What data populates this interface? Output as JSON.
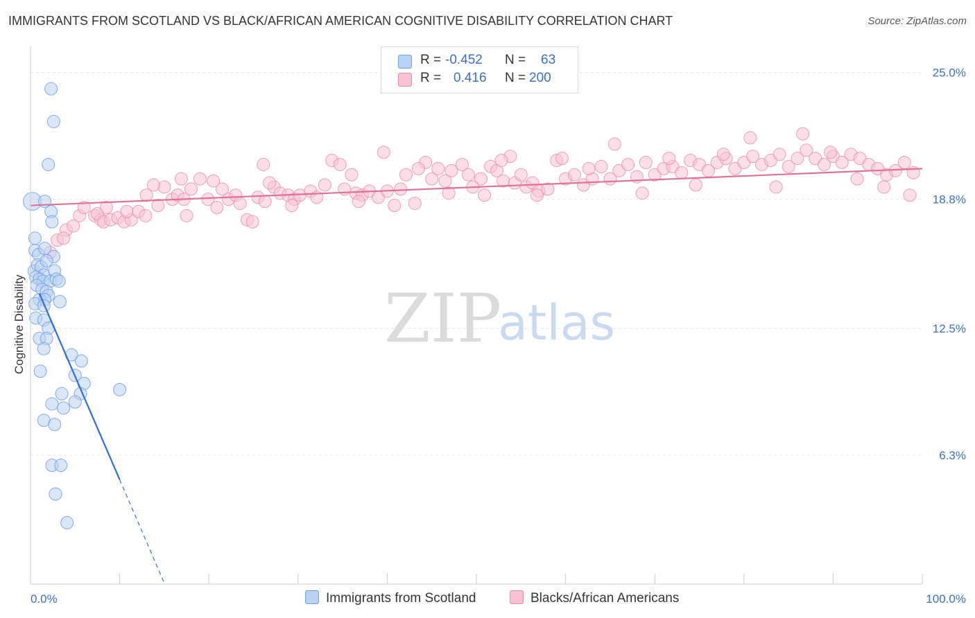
{
  "title": "IMMIGRANTS FROM SCOTLAND VS BLACK/AFRICAN AMERICAN COGNITIVE DISABILITY CORRELATION CHART",
  "source": "Source: ZipAtlas.com",
  "watermark": {
    "zip": "ZIP",
    "atlas": "atlas"
  },
  "colors": {
    "blue": "#6b9fe0",
    "blue_fill": "#b9d1f2",
    "blue_line": "#2f6fd1",
    "pink": "#e88aaa",
    "pink_fill": "#f7c3d4",
    "pink_line": "#e0709a",
    "grid": "#e6e6e6",
    "axis_text": "#3a6fc4"
  },
  "legend": {
    "rows": [
      {
        "r_label": "R =",
        "r_value": "-0.452",
        "n_label": "N =",
        "n_value": "63"
      },
      {
        "r_label": "R =",
        "r_value": "0.416",
        "n_label": "N =",
        "n_value": "200"
      }
    ]
  },
  "chart_data": {
    "type": "scatter",
    "title": "IMMIGRANTS FROM SCOTLAND VS BLACK/AFRICAN AMERICAN COGNITIVE DISABILITY CORRELATION CHART",
    "xlabel": "",
    "ylabel": "Cognitive Disability",
    "xlim": [
      0,
      100
    ],
    "ylim": [
      0,
      26
    ],
    "x_tick_labels": [
      "0.0%",
      "100.0%"
    ],
    "y_ticks": [
      {
        "value": 6.3,
        "label": "6.3%"
      },
      {
        "value": 12.5,
        "label": "12.5%"
      },
      {
        "value": 18.8,
        "label": "18.8%"
      },
      {
        "value": 25.0,
        "label": "25.0%"
      }
    ],
    "grid": true,
    "legend_position": "bottom-center",
    "series": [
      {
        "name": "Immigrants from Scotland",
        "color": "#6b9fe0",
        "trend": {
          "x1": 0,
          "y1": 15.2,
          "x2": 10,
          "y2": 5.1,
          "dash_to_x": 15
        },
        "points": [
          [
            0.2,
            18.7
          ],
          [
            2.3,
            24.2
          ],
          [
            2.6,
            22.6
          ],
          [
            2.0,
            20.5
          ],
          [
            1.6,
            18.7
          ],
          [
            2.3,
            18.2
          ],
          [
            2.4,
            17.7
          ],
          [
            0.5,
            16.9
          ],
          [
            0.5,
            16.3
          ],
          [
            0.9,
            16.1
          ],
          [
            1.6,
            16.4
          ],
          [
            2.6,
            16.0
          ],
          [
            0.4,
            15.3
          ],
          [
            0.8,
            15.6
          ],
          [
            1.2,
            15.5
          ],
          [
            1.5,
            15.1
          ],
          [
            1.8,
            15.8
          ],
          [
            2.7,
            15.3
          ],
          [
            0.6,
            15.0
          ],
          [
            1.0,
            14.9
          ],
          [
            1.4,
            14.8
          ],
          [
            2.2,
            14.8
          ],
          [
            2.9,
            14.9
          ],
          [
            3.2,
            14.8
          ],
          [
            0.7,
            14.6
          ],
          [
            1.3,
            14.4
          ],
          [
            1.8,
            14.3
          ],
          [
            2.0,
            14.1
          ],
          [
            1.0,
            13.9
          ],
          [
            1.6,
            13.9
          ],
          [
            3.3,
            13.8
          ],
          [
            0.5,
            13.7
          ],
          [
            1.5,
            13.6
          ],
          [
            0.6,
            13.0
          ],
          [
            1.5,
            12.9
          ],
          [
            2.0,
            12.5
          ],
          [
            1.0,
            12.0
          ],
          [
            1.8,
            12.0
          ],
          [
            1.5,
            11.5
          ],
          [
            4.6,
            11.2
          ],
          [
            5.7,
            10.9
          ],
          [
            1.1,
            10.4
          ],
          [
            5.0,
            10.2
          ],
          [
            6.0,
            9.8
          ],
          [
            10.0,
            9.5
          ],
          [
            3.5,
            9.3
          ],
          [
            5.6,
            9.3
          ],
          [
            2.4,
            8.8
          ],
          [
            3.7,
            8.6
          ],
          [
            5.0,
            8.9
          ],
          [
            1.5,
            8.0
          ],
          [
            2.7,
            7.8
          ],
          [
            2.4,
            5.8
          ],
          [
            3.4,
            5.8
          ],
          [
            2.8,
            4.4
          ],
          [
            4.1,
            3.0
          ]
        ]
      },
      {
        "name": "Blacks/African Americans",
        "color": "#e88aaa",
        "trend": {
          "x1": 0,
          "y1": 18.5,
          "x2": 100,
          "y2": 20.3
        },
        "points": [
          [
            2.2,
            16.2
          ],
          [
            3.0,
            16.8
          ],
          [
            4.0,
            17.3
          ],
          [
            3.7,
            16.9
          ],
          [
            4.8,
            17.5
          ],
          [
            5.5,
            18.0
          ],
          [
            6.0,
            18.4
          ],
          [
            7.2,
            18.0
          ],
          [
            7.9,
            17.8
          ],
          [
            7.5,
            18.1
          ],
          [
            8.2,
            17.7
          ],
          [
            9.0,
            17.8
          ],
          [
            9.8,
            17.9
          ],
          [
            10.5,
            17.7
          ],
          [
            11.3,
            17.8
          ],
          [
            12.1,
            18.2
          ],
          [
            12.9,
            18.0
          ],
          [
            13.0,
            19.0
          ],
          [
            14.3,
            18.5
          ],
          [
            15.0,
            19.4
          ],
          [
            15.9,
            18.8
          ],
          [
            16.5,
            19.0
          ],
          [
            17.2,
            18.8
          ],
          [
            17.5,
            18.0
          ],
          [
            18.0,
            19.3
          ],
          [
            19.0,
            19.8
          ],
          [
            19.9,
            18.8
          ],
          [
            20.9,
            18.4
          ],
          [
            21.5,
            19.3
          ],
          [
            22.2,
            18.8
          ],
          [
            23.0,
            19.0
          ],
          [
            24.3,
            17.8
          ],
          [
            24.9,
            17.7
          ],
          [
            25.5,
            18.9
          ],
          [
            26.3,
            18.7
          ],
          [
            26.1,
            20.5
          ],
          [
            27.3,
            19.4
          ],
          [
            28.0,
            19.1
          ],
          [
            28.9,
            19.0
          ],
          [
            29.6,
            18.8
          ],
          [
            30.2,
            19.0
          ],
          [
            31.4,
            19.2
          ],
          [
            32.1,
            18.9
          ],
          [
            33.8,
            20.7
          ],
          [
            34.7,
            20.5
          ],
          [
            35.2,
            19.3
          ],
          [
            36.0,
            20.0
          ],
          [
            36.5,
            19.1
          ],
          [
            37.2,
            19.0
          ],
          [
            38.0,
            19.2
          ],
          [
            39.0,
            18.9
          ],
          [
            40.0,
            19.2
          ],
          [
            40.8,
            18.5
          ],
          [
            41.5,
            19.3
          ],
          [
            42.1,
            20.0
          ],
          [
            43.1,
            18.6
          ],
          [
            44.3,
            20.6
          ],
          [
            45.0,
            19.8
          ],
          [
            45.7,
            20.3
          ],
          [
            46.5,
            19.7
          ],
          [
            47.2,
            20.2
          ],
          [
            48.4,
            20.5
          ],
          [
            49.1,
            20.0
          ],
          [
            50.5,
            19.8
          ],
          [
            50.9,
            19.0
          ],
          [
            51.6,
            20.4
          ],
          [
            52.3,
            20.2
          ],
          [
            53.0,
            19.7
          ],
          [
            53.8,
            20.9
          ],
          [
            54.3,
            19.6
          ],
          [
            55.0,
            20.0
          ],
          [
            55.6,
            19.4
          ],
          [
            56.3,
            19.6
          ],
          [
            57.0,
            19.2
          ],
          [
            58.0,
            19.3
          ],
          [
            59.0,
            20.7
          ],
          [
            60.0,
            19.8
          ],
          [
            61.0,
            20.0
          ],
          [
            62.0,
            19.5
          ],
          [
            63.0,
            19.8
          ],
          [
            64.0,
            20.4
          ],
          [
            65.0,
            19.8
          ],
          [
            66.0,
            20.2
          ],
          [
            67.0,
            20.5
          ],
          [
            68.0,
            19.9
          ],
          [
            69.0,
            20.6
          ],
          [
            70.0,
            20.0
          ],
          [
            71.0,
            20.3
          ],
          [
            72.0,
            20.4
          ],
          [
            73.0,
            20.1
          ],
          [
            74.0,
            20.7
          ],
          [
            75.0,
            20.5
          ],
          [
            76.0,
            20.2
          ],
          [
            77.0,
            20.6
          ],
          [
            78.0,
            20.8
          ],
          [
            79.0,
            20.3
          ],
          [
            80.0,
            20.6
          ],
          [
            81.0,
            20.9
          ],
          [
            82.0,
            20.5
          ],
          [
            83.0,
            20.7
          ],
          [
            84.0,
            21.0
          ],
          [
            85.0,
            20.4
          ],
          [
            86.0,
            20.8
          ],
          [
            87.0,
            21.2
          ],
          [
            88.0,
            20.8
          ],
          [
            89.0,
            20.5
          ],
          [
            90.0,
            20.9
          ],
          [
            91.0,
            20.6
          ],
          [
            92.0,
            21.0
          ],
          [
            93.0,
            20.8
          ],
          [
            94.0,
            20.5
          ],
          [
            95.0,
            20.3
          ],
          [
            96.0,
            20.0
          ],
          [
            97.0,
            20.2
          ],
          [
            98.0,
            20.6
          ],
          [
            99.0,
            20.1
          ],
          [
            8.5,
            18.4
          ],
          [
            10.8,
            18.2
          ],
          [
            13.8,
            19.5
          ],
          [
            16.9,
            19.8
          ],
          [
            20.5,
            19.7
          ],
          [
            23.5,
            18.6
          ],
          [
            26.8,
            19.6
          ],
          [
            29.3,
            18.5
          ],
          [
            33.0,
            19.5
          ],
          [
            36.8,
            18.7
          ],
          [
            39.6,
            21.1
          ],
          [
            43.5,
            20.3
          ],
          [
            46.9,
            19.1
          ],
          [
            49.6,
            19.4
          ],
          [
            52.8,
            20.7
          ],
          [
            56.8,
            19.0
          ],
          [
            59.6,
            20.8
          ],
          [
            62.6,
            20.3
          ],
          [
            65.5,
            21.5
          ],
          [
            68.6,
            19.1
          ],
          [
            71.6,
            20.8
          ],
          [
            74.6,
            19.5
          ],
          [
            77.7,
            21.0
          ],
          [
            80.7,
            21.8
          ],
          [
            83.6,
            19.4
          ],
          [
            86.6,
            22.0
          ],
          [
            89.7,
            21.1
          ],
          [
            92.7,
            19.8
          ],
          [
            95.7,
            19.4
          ],
          [
            98.6,
            19.0
          ]
        ]
      }
    ]
  },
  "bottom_legend": [
    {
      "label": "Immigrants from Scotland"
    },
    {
      "label": "Blacks/African Americans"
    }
  ]
}
